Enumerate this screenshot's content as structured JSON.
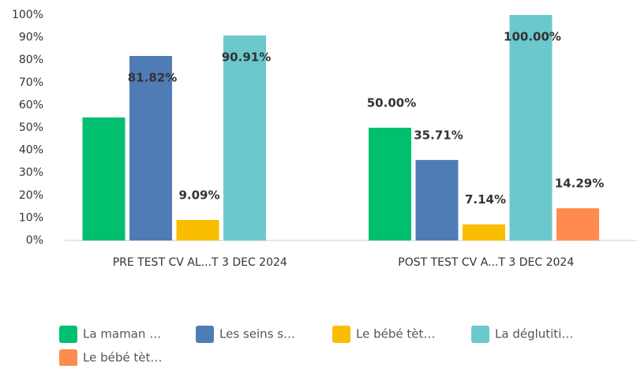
{
  "chart_data": {
    "type": "bar",
    "categories": [
      "PRE TEST CV AL...T 3 DEC 2024",
      "POST TEST CV A...T 3 DEC 2024"
    ],
    "series": [
      {
        "name": "La maman …",
        "color": "#00bf6f",
        "values": [
          54.55,
          50.0
        ],
        "value_labels": [
          null,
          "50.00%"
        ]
      },
      {
        "name": "Les seins s…",
        "color": "#507cb6",
        "values": [
          81.82,
          35.71
        ],
        "value_labels": [
          "81.82%",
          "35.71%"
        ]
      },
      {
        "name": "Le bébé tèt…",
        "color": "#f9be00",
        "values": [
          9.09,
          7.14
        ],
        "value_labels": [
          "9.09%",
          "7.14%"
        ]
      },
      {
        "name": "La déglutiti…",
        "color": "#6bc8cd",
        "values": [
          90.91,
          100.0
        ],
        "value_labels": [
          "90.91%",
          "100.00%"
        ]
      },
      {
        "name": "Le bébé tèt…",
        "color": "#ff8b4f",
        "values": [
          0,
          14.29
        ],
        "value_labels": [
          null,
          "14.29%"
        ]
      }
    ],
    "ylim": [
      0,
      100
    ],
    "yticks": [
      {
        "value": 0,
        "label": "0%"
      },
      {
        "value": 10,
        "label": "10%"
      },
      {
        "value": 20,
        "label": "20%"
      },
      {
        "value": 30,
        "label": "30%"
      },
      {
        "value": 40,
        "label": "40%"
      },
      {
        "value": 50,
        "label": "50%"
      },
      {
        "value": 60,
        "label": "60%"
      },
      {
        "value": 70,
        "label": "70%"
      },
      {
        "value": 80,
        "label": "80%"
      },
      {
        "value": 90,
        "label": "90%"
      },
      {
        "value": 100,
        "label": "100%"
      }
    ],
    "grid": false
  }
}
